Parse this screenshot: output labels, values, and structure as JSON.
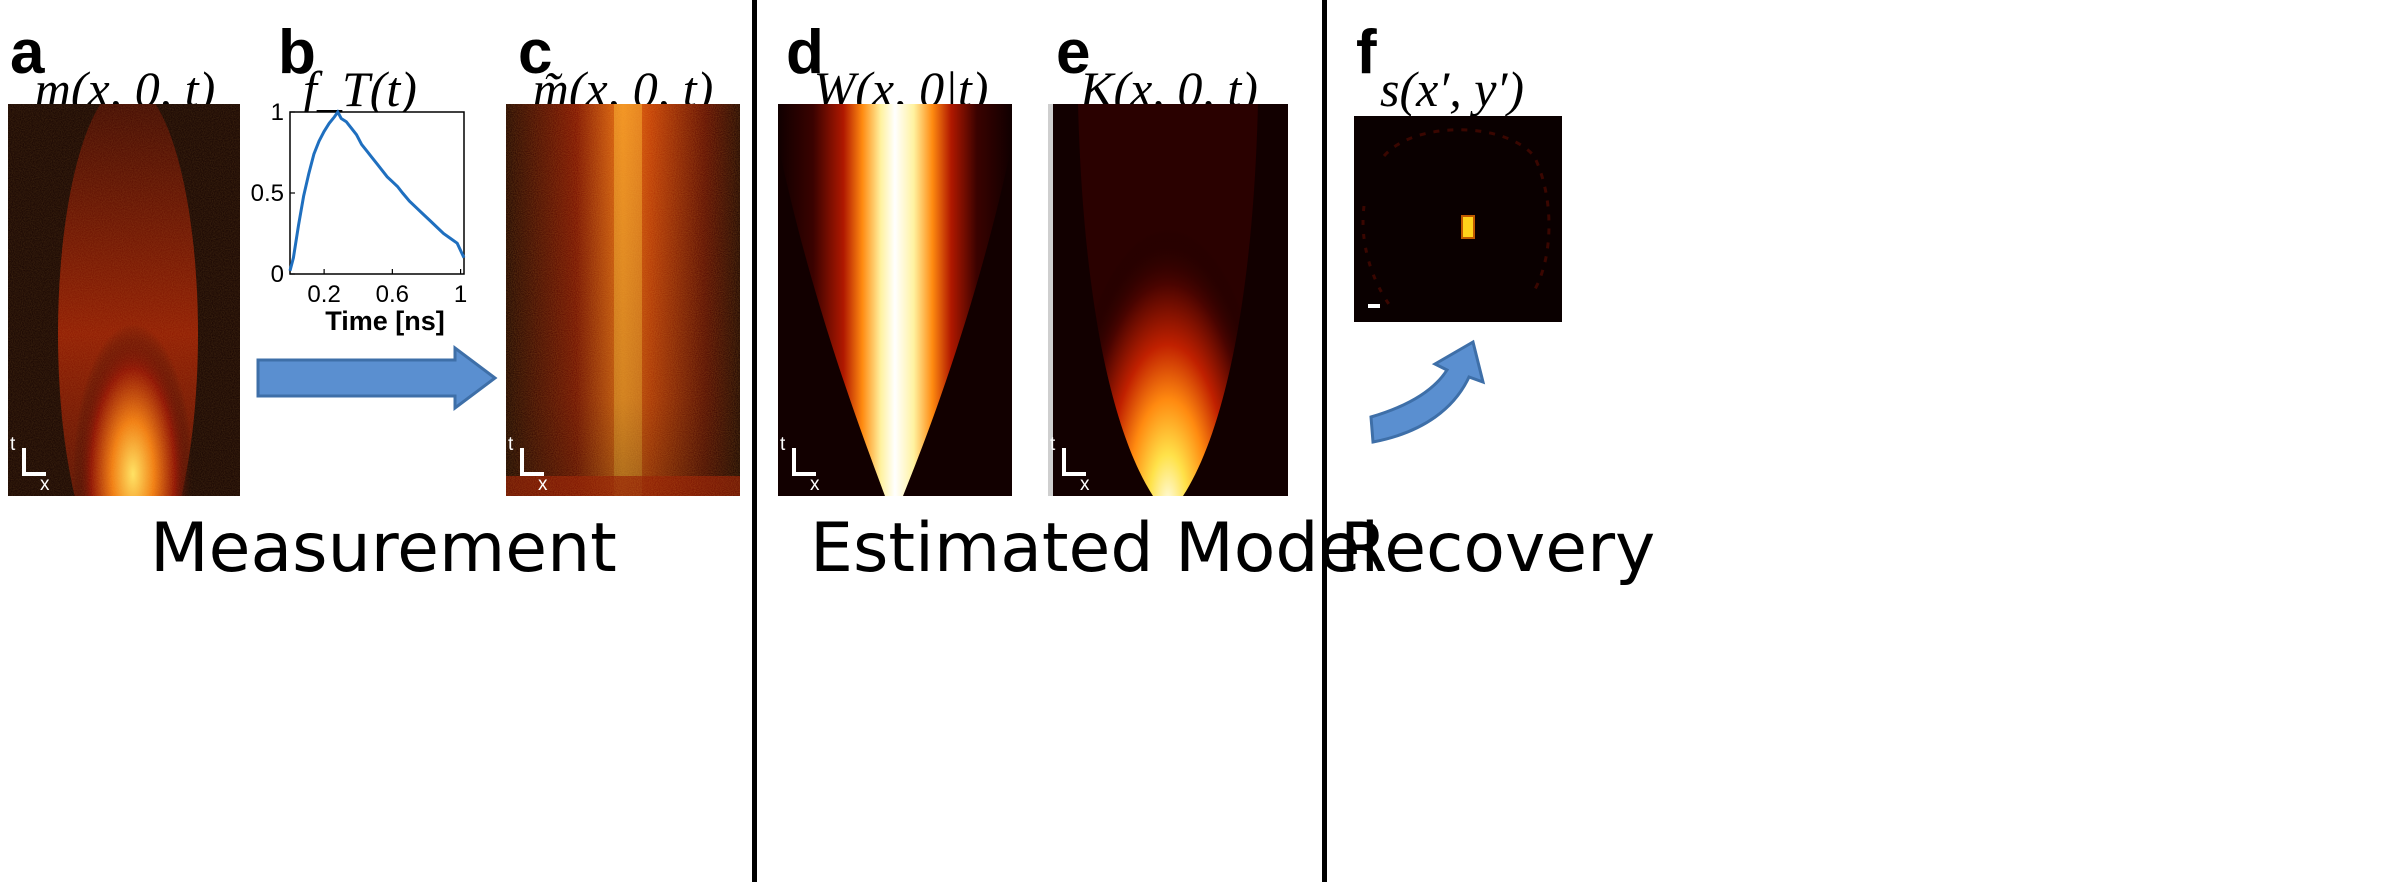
{
  "panels": {
    "a": {
      "letter": "a",
      "label": "m(x, 0, t)"
    },
    "b": {
      "letter": "b",
      "label": "f_T(t)"
    },
    "c": {
      "letter": "c",
      "label": "m̃(x, 0, t)"
    },
    "d": {
      "letter": "d",
      "label": "W(x, 0|t)"
    },
    "e": {
      "letter": "e",
      "label": "K(x, 0, t)"
    },
    "f": {
      "letter": "f",
      "label": "s(x′, y′)"
    }
  },
  "sections": {
    "measurement": "Measurement",
    "model": "Estimated Model",
    "recovery": "Recovery"
  },
  "axis_indicator": {
    "t": "t",
    "x": "x"
  },
  "chart_data": {
    "type": "line",
    "title": "",
    "xlabel": "Time [ns]",
    "ylabel": "",
    "xlim": [
      0,
      1.02
    ],
    "ylim": [
      0,
      1
    ],
    "xticks": [
      0.2,
      0.6,
      1
    ],
    "xtick_labels": [
      "0.2",
      "0.6",
      "1"
    ],
    "yticks": [
      0,
      0.5,
      1
    ],
    "ytick_labels": [
      "0",
      "0.5",
      "1"
    ],
    "series": [
      {
        "color": "#1f6fbf",
        "x": [
          0,
          0.02,
          0.05,
          0.08,
          0.11,
          0.14,
          0.17,
          0.2,
          0.23,
          0.26,
          0.28,
          0.3,
          0.33,
          0.36,
          0.39,
          0.42,
          0.45,
          0.48,
          0.51,
          0.54,
          0.57,
          0.6,
          0.63,
          0.66,
          0.7,
          0.74,
          0.78,
          0.82,
          0.86,
          0.9,
          0.94,
          0.98,
          1.02
        ],
        "y": [
          0.02,
          0.1,
          0.3,
          0.48,
          0.62,
          0.74,
          0.82,
          0.88,
          0.93,
          0.97,
          1.0,
          0.96,
          0.94,
          0.9,
          0.86,
          0.8,
          0.76,
          0.72,
          0.68,
          0.64,
          0.6,
          0.57,
          0.54,
          0.5,
          0.45,
          0.41,
          0.37,
          0.33,
          0.29,
          0.25,
          0.22,
          0.19,
          0.1
        ]
      }
    ]
  }
}
